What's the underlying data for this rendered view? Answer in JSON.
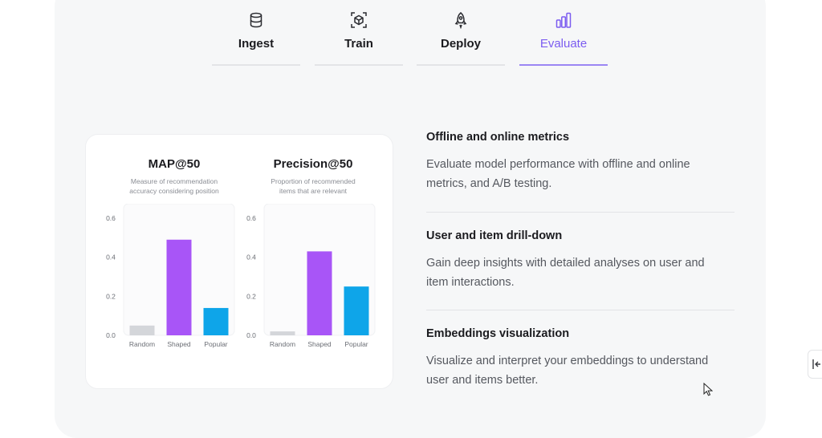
{
  "tabs": [
    {
      "label": "Ingest",
      "icon": "database-icon",
      "active": false
    },
    {
      "label": "Train",
      "icon": "model-cube-icon",
      "active": false
    },
    {
      "label": "Deploy",
      "icon": "rocket-icon",
      "active": false
    },
    {
      "label": "Evaluate",
      "icon": "bar-chart-icon",
      "active": true
    }
  ],
  "colors": {
    "accent": "#7b5cf0",
    "shaped_bar": "#a855f7",
    "popular_bar": "#0ea5e9",
    "random_bar": "#d4d6da"
  },
  "charts": {
    "map": {
      "title": "MAP@50",
      "subtitle_line1": "Measure of recommendation",
      "subtitle_line2": "accuracy considering position"
    },
    "precision": {
      "title": "Precision@50",
      "subtitle_line1": "Proportion of recommended",
      "subtitle_line2": "items that are relevant"
    }
  },
  "chart_data": [
    {
      "type": "bar",
      "title": "MAP@50",
      "subtitle": "Measure of recommendation accuracy considering position",
      "categories": [
        "Random",
        "Shaped",
        "Popular"
      ],
      "values": [
        0.05,
        0.49,
        0.14
      ],
      "colors": [
        "#d4d6da",
        "#a855f7",
        "#0ea5e9"
      ],
      "yticks": [
        "0.0",
        "0.2",
        "0.4",
        "0.6"
      ],
      "ylim": [
        0,
        0.6
      ],
      "grid": false
    },
    {
      "type": "bar",
      "title": "Precision@50",
      "subtitle": "Proportion of recommended items that are relevant",
      "categories": [
        "Random",
        "Shaped",
        "Popular"
      ],
      "values": [
        0.02,
        0.43,
        0.25
      ],
      "colors": [
        "#d4d6da",
        "#a855f7",
        "#0ea5e9"
      ],
      "yticks": [
        "0.0",
        "0.2",
        "0.4",
        "0.6"
      ],
      "ylim": [
        0,
        0.6
      ],
      "grid": false
    }
  ],
  "features": [
    {
      "title": "Offline and online metrics",
      "desc_line1": "Evaluate model performance with offline and online",
      "desc_line2": "metrics, and A/B testing."
    },
    {
      "title": "User and item drill-down",
      "desc_line1": "Gain deep insights with detailed analyses on user and",
      "desc_line2": "item interactions."
    },
    {
      "title": "Embeddings visualization",
      "desc_line1": "Visualize and interpret your embeddings to understand",
      "desc_line2": "user and items better."
    }
  ],
  "side_button": {
    "icon": "collapse-panel-icon"
  }
}
